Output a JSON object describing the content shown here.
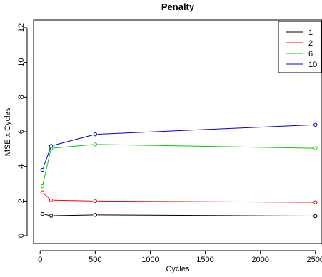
{
  "chart_data": {
    "type": "line",
    "title": "Penalty",
    "xlabel": "Cycles",
    "ylabel": "MSE x Cycles",
    "xlim": [
      -60,
      2560
    ],
    "ylim": [
      -0.45,
      12.45
    ],
    "xticks": [
      0,
      500,
      1000,
      1500,
      2000,
      2500
    ],
    "yticks": [
      0,
      2,
      4,
      6,
      8,
      10,
      12
    ],
    "legend_position": "top-right",
    "grid": false,
    "x": [
      20,
      100,
      500,
      2500
    ],
    "series": [
      {
        "name": "1",
        "color": "#000000",
        "values": [
          1.25,
          1.15,
          1.2,
          1.13
        ]
      },
      {
        "name": "2",
        "color": "#ff0000",
        "values": [
          2.5,
          2.05,
          2.0,
          1.93
        ]
      },
      {
        "name": "6",
        "color": "#00cd00",
        "values": [
          2.85,
          5.05,
          5.27,
          5.05
        ]
      },
      {
        "name": "10",
        "color": "#0000cd",
        "values": [
          3.8,
          5.18,
          5.85,
          6.4
        ]
      }
    ]
  }
}
